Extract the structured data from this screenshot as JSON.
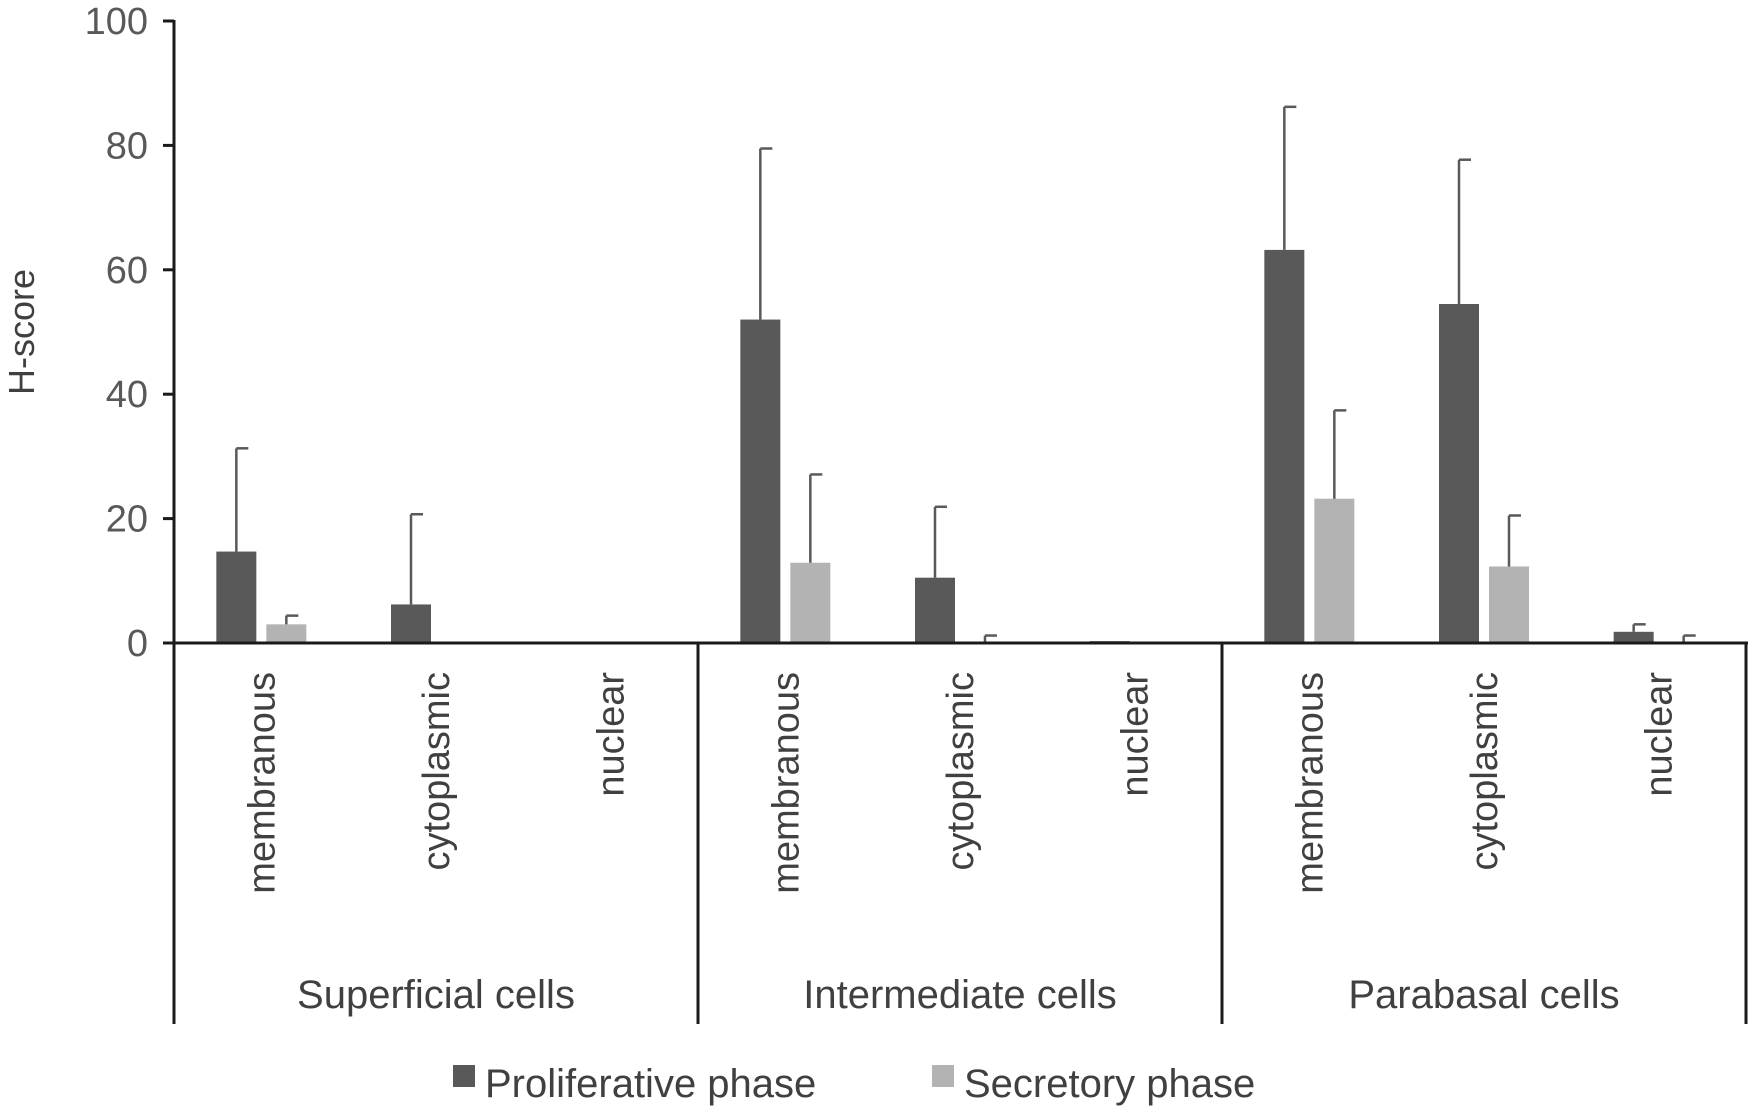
{
  "chart_data": {
    "type": "bar",
    "title": "",
    "xlabel": "",
    "ylabel": "H-score",
    "ylim": [
      0,
      100
    ],
    "yticks": [
      0,
      20,
      40,
      60,
      80,
      100
    ],
    "grid": false,
    "legend_position": "bottom",
    "groups": [
      "Superficial cells",
      "Intermediate cells",
      "Parabasal cells"
    ],
    "categories": [
      "membranous",
      "cytoplasmic",
      "nuclear"
    ],
    "series": [
      {
        "name": "Proliferative phase",
        "color": "#595959",
        "values": [
          [
            14.7,
            6.2,
            0.1
          ],
          [
            52.0,
            10.5,
            0.3
          ],
          [
            63.2,
            54.5,
            1.8
          ]
        ],
        "error": [
          [
            16.6,
            14.5,
            0
          ],
          [
            27.5,
            11.4,
            0
          ],
          [
            23.0,
            23.2,
            1.2
          ]
        ]
      },
      {
        "name": "Secretory phase",
        "color": "#b3b3b3",
        "values": [
          [
            3.0,
            0,
            0
          ],
          [
            12.9,
            0,
            0
          ],
          [
            23.2,
            12.3,
            0
          ]
        ],
        "error": [
          [
            1.4,
            0,
            0
          ],
          [
            14.2,
            1.2,
            0
          ],
          [
            14.2,
            8.2,
            1.2
          ]
        ]
      }
    ]
  }
}
